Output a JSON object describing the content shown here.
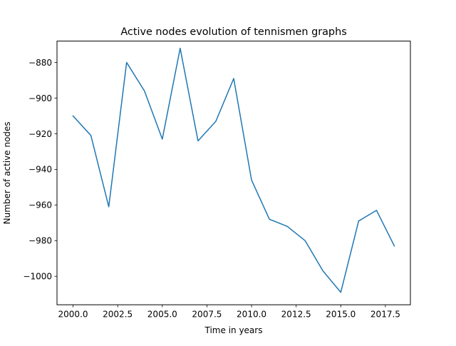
{
  "chart_data": {
    "type": "line",
    "title": "Active nodes evolution of tennismen graphs",
    "xlabel": "Time in years",
    "ylabel": "Number of active nodes",
    "xlim": [
      1999.1,
      2018.9
    ],
    "ylim": [
      -1016,
      -868
    ],
    "xticks": [
      2000.0,
      2002.5,
      2005.0,
      2007.5,
      2010.0,
      2012.5,
      2015.0,
      2017.5
    ],
    "xtick_labels": [
      "2000.0",
      "2002.5",
      "2005.0",
      "2007.5",
      "2010.0",
      "2012.5",
      "2015.0",
      "2017.5"
    ],
    "yticks": [
      -1000,
      -980,
      -960,
      -940,
      -920,
      -900,
      -880
    ],
    "ytick_labels": [
      "−1000",
      "−980",
      "−960",
      "−940",
      "−920",
      "−900",
      "−880"
    ],
    "grid": false,
    "series": [
      {
        "color": "#1f77b4",
        "x": [
          2000,
          2001,
          2002,
          2003,
          2004,
          2005,
          2006,
          2007,
          2008,
          2009,
          2010,
          2011,
          2012,
          2013,
          2014,
          2015,
          2016,
          2017,
          2018
        ],
        "y": [
          -910,
          -921,
          -961,
          -880,
          -896,
          -923,
          -872,
          -924,
          -913,
          -889,
          -946,
          -968,
          -972,
          -980,
          -997,
          -1009,
          -969,
          -963,
          -983
        ]
      }
    ]
  }
}
